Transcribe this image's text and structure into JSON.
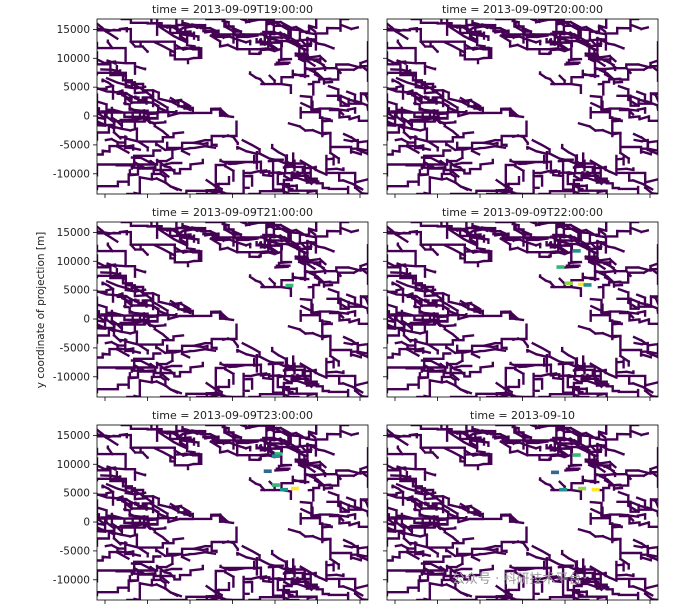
{
  "chart_data": {
    "type": "heatmap",
    "layout": "3x2 grid of map panels sharing axes",
    "ylabel": "y coordinate of projection [m]",
    "yticks": [
      15000,
      10000,
      5000,
      0,
      -5000,
      -10000
    ],
    "ylim": [
      -13500,
      16800
    ],
    "xlim": [
      0,
      100
    ],
    "colormap": "viridis",
    "network_color": "#440154",
    "panels": [
      {
        "title": "time = 2013-09-09T19:00:00",
        "highlights": []
      },
      {
        "title": "time = 2013-09-09T20:00:00",
        "highlights": []
      },
      {
        "title": "time = 2013-09-09T21:00:00",
        "highlights": [
          {
            "x": 71,
            "y": 5800,
            "color": "#35b779"
          }
        ]
      },
      {
        "title": "time = 2013-09-09T22:00:00",
        "highlights": [
          {
            "x": 70,
            "y": 11800,
            "color": "#21918c"
          },
          {
            "x": 64,
            "y": 9000,
            "color": "#35b779"
          },
          {
            "x": 67,
            "y": 6200,
            "color": "#90d743"
          },
          {
            "x": 72,
            "y": 6000,
            "color": "#fde725"
          },
          {
            "x": 74,
            "y": 5900,
            "color": "#21918c"
          }
        ]
      },
      {
        "title": "time = 2013-09-09T23:00:00",
        "highlights": [
          {
            "x": 67,
            "y": 11800,
            "color": "#35b779"
          },
          {
            "x": 66,
            "y": 11400,
            "color": "#21918c"
          },
          {
            "x": 63,
            "y": 8800,
            "color": "#31688e"
          },
          {
            "x": 66,
            "y": 6400,
            "color": "#35b779"
          },
          {
            "x": 69,
            "y": 5600,
            "color": "#21918c"
          },
          {
            "x": 73,
            "y": 5800,
            "color": "#fde725"
          }
        ]
      },
      {
        "title": "time = 2013-09-10",
        "highlights": [
          {
            "x": 70,
            "y": 11600,
            "color": "#35b779"
          },
          {
            "x": 62,
            "y": 8600,
            "color": "#31688e"
          },
          {
            "x": 65,
            "y": 5600,
            "color": "#21918c"
          },
          {
            "x": 72,
            "y": 5800,
            "color": "#90d743"
          },
          {
            "x": 77,
            "y": 5600,
            "color": "#fde725"
          }
        ]
      }
    ]
  },
  "watermark": "公众号 · 科研技术平台"
}
